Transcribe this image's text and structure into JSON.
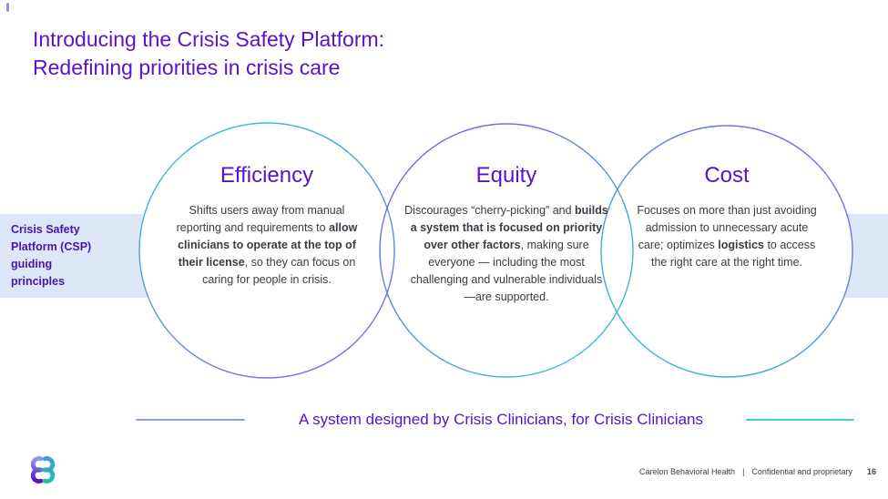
{
  "slide": {
    "title": {
      "line1": "Introducing the Crisis Safety Platform:",
      "line2": "Redefining priorities in crisis care"
    },
    "sidebar": {
      "lines": [
        "Crisis Safety",
        "Platform (CSP)",
        "guiding",
        "principles"
      ]
    },
    "principles": [
      {
        "heading": "Efficiency",
        "body": [
          {
            "text": "Shifts users away from manual reporting and requirements to ",
            "bold": false
          },
          {
            "text": "allow clinicians to operate at the top of their license",
            "bold": true
          },
          {
            "text": ", so they can focus on caring for people in crisis.",
            "bold": false
          }
        ]
      },
      {
        "heading": "Equity",
        "body": [
          {
            "text": "Discourages “cherry-picking” and ",
            "bold": false
          },
          {
            "text": "builds a system that is focused on priority over other factors",
            "bold": true
          },
          {
            "text": ", making sure everyone — including the most challenging and vulnerable individuals —are supported.",
            "bold": false
          }
        ]
      },
      {
        "heading": "Cost",
        "body": [
          {
            "text": "Focuses on more than just avoiding admission to unnecessary acute care; optimizes ",
            "bold": false
          },
          {
            "text": "logistics",
            "bold": true
          },
          {
            "text": " to access the right care at the right time.",
            "bold": false
          }
        ]
      }
    ],
    "tagline": "A system designed by Crisis Clinicians, for Crisis Clinicians",
    "footer": {
      "org": "Carelon Behavioral Health",
      "divider": "|",
      "note": "Confidential and proprietary",
      "page": "16"
    }
  },
  "colors": {
    "accent_purple": "#5714c9",
    "sidebar_purple": "#4714b3",
    "body_text": "#3b3b46",
    "band_background": "#dee7f7",
    "circle_efficiency_gradient": [
      "#38c3ce",
      "#8268e7"
    ],
    "circle_equity_gradient": [
      "#7a5ce8",
      "#3bc2da"
    ],
    "circle_cost_gradient": [
      "#7f64e9",
      "#2bc3c7"
    ],
    "tagline_line_left": "#8e9aea",
    "tagline_line_right": "#49c8e6",
    "footer_text": "#404040",
    "logo_purple_gradient": [
      "#8e9cf2",
      "#5310b8"
    ],
    "logo_teal_gradient": [
      "#3e9be0",
      "#1ec3a6"
    ]
  }
}
